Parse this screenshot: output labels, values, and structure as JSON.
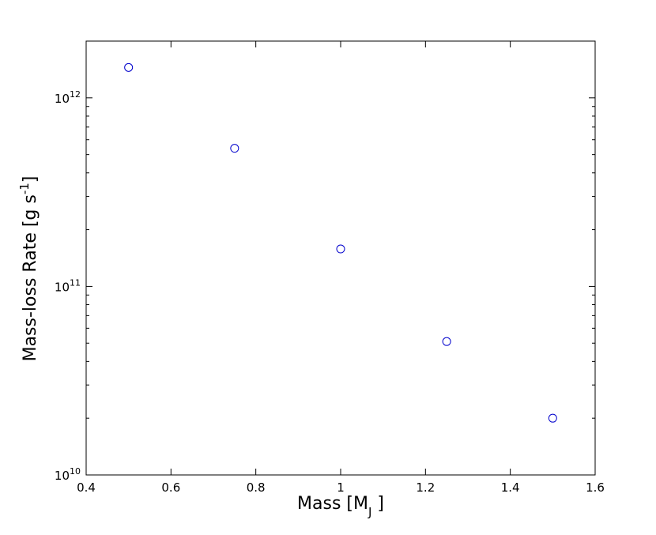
{
  "chart_data": {
    "type": "scatter",
    "title": "",
    "xlabel_main": "Mass [M",
    "xlabel_sub": "J",
    "xlabel_end": " ]",
    "ylabel_main": "Mass-loss Rate [g s",
    "ylabel_sup": "-1",
    "ylabel_end": "]",
    "xlim": [
      0.4,
      1.6
    ],
    "ylim": [
      10000000000.0,
      2000000000000.0
    ],
    "y_scale": "log",
    "grid": false,
    "marker_color": "#0000cc",
    "marker": "open-circle",
    "x_ticks": [
      "0.4",
      "0.6",
      "0.8",
      "1",
      "1.2",
      "1.4",
      "1.6"
    ],
    "y_tick_base": "10",
    "y_tick_exponents": [
      "10",
      "11",
      "12"
    ],
    "points": [
      {
        "x": 0.5,
        "y": 1450000000000.0
      },
      {
        "x": 0.75,
        "y": 540000000000.0
      },
      {
        "x": 1.0,
        "y": 158000000000.0
      },
      {
        "x": 1.25,
        "y": 51000000000.0
      },
      {
        "x": 1.5,
        "y": 20000000000.0
      }
    ]
  }
}
